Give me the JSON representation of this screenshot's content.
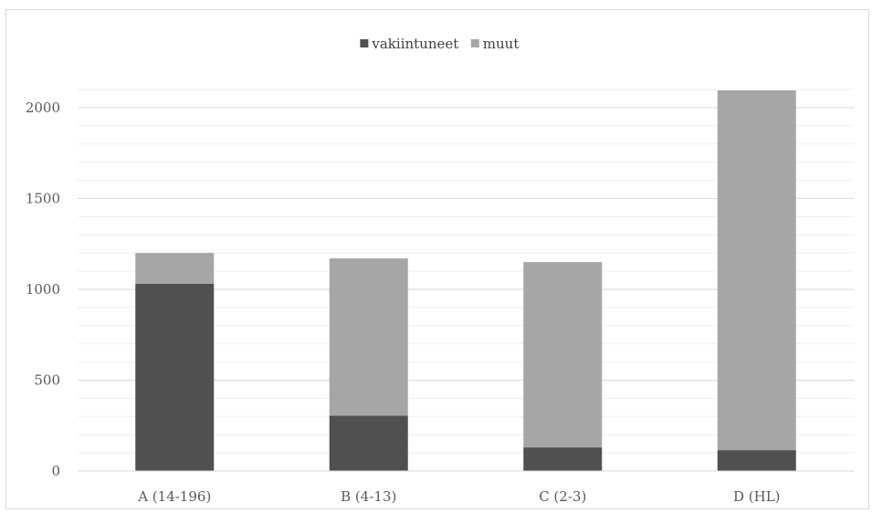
{
  "chart_data": {
    "type": "bar",
    "stacked": true,
    "categories": [
      "A (14-196)",
      "B (4-13)",
      "C (2-3)",
      "D (HL)"
    ],
    "series": [
      {
        "name": "vakiintuneet",
        "color": "#505050",
        "values": [
          1030,
          305,
          130,
          115
        ]
      },
      {
        "name": "muut",
        "color": "#a6a6a6",
        "values": [
          170,
          865,
          1020,
          1980
        ]
      }
    ],
    "ylim": [
      0,
      2100
    ],
    "yticks": [
      0,
      500,
      1000,
      1500,
      2000
    ],
    "grid": true,
    "legend_position": "top-center",
    "title": "",
    "xlabel": "",
    "ylabel": ""
  }
}
